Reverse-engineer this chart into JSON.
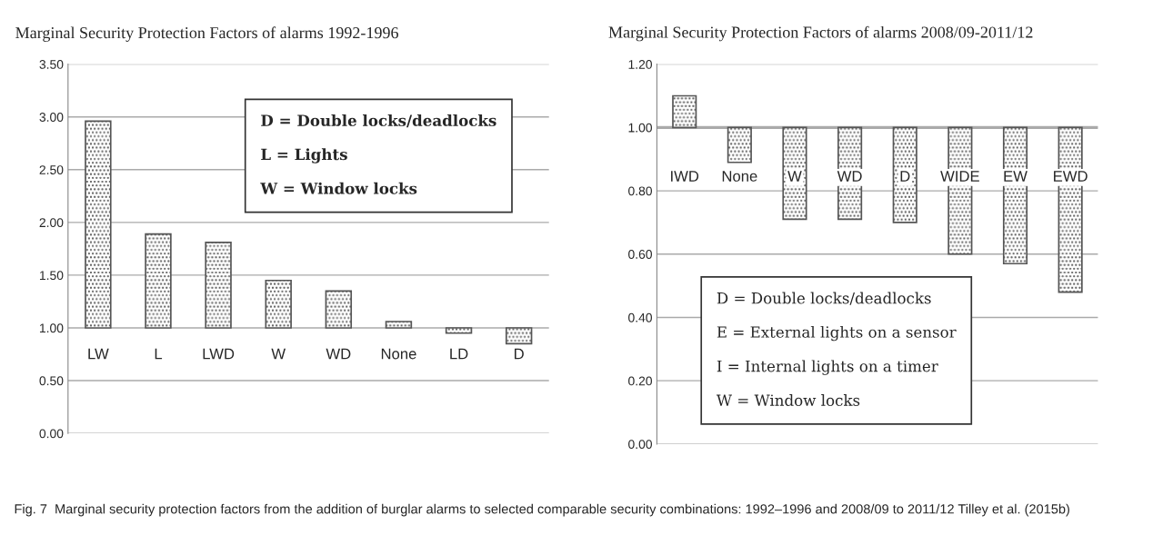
{
  "chart_data": [
    {
      "type": "bar",
      "title": "Marginal Security Protection Factors of alarms 1992-1996",
      "categories": [
        "LW",
        "L",
        "LWD",
        "W",
        "WD",
        "None",
        "LD",
        "D"
      ],
      "base": [
        1,
        1,
        1,
        1,
        1,
        1,
        1,
        1
      ],
      "values": [
        1.96,
        0.89,
        0.81,
        0.45,
        0.35,
        0.06,
        -0.05,
        -0.15
      ],
      "color": "#555555",
      "ylim": [
        0,
        3.5
      ],
      "yticks": [
        {
          "value": 0,
          "label": "0.00"
        },
        {
          "value": 0.5,
          "label": "0.50"
        },
        {
          "value": 1,
          "label": "1.00"
        },
        {
          "value": 1.5,
          "label": "1.50"
        },
        {
          "value": 2,
          "label": "2.00"
        },
        {
          "value": 2.5,
          "label": "2.50"
        },
        {
          "value": 3,
          "label": "3.00"
        },
        {
          "value": 3.5,
          "label": "3.50"
        }
      ],
      "grid": "y",
      "legend": false,
      "annotations": [
        "D = Double locks/deadlocks",
        "L = Lights",
        "W = Window locks"
      ]
    },
    {
      "type": "bar",
      "title": "Marginal Security Protection Factors of alarms 2008/09-2011/12",
      "categories": [
        "IWD",
        "None",
        "W",
        "WD",
        "D",
        "WIDE",
        "EW",
        "EWD"
      ],
      "base": [
        1,
        1,
        1,
        1,
        1,
        1,
        1,
        1
      ],
      "values": [
        0.1,
        -0.11,
        -0.29,
        -0.29,
        -0.3,
        -0.4,
        -0.43,
        -0.52
      ],
      "color": "#555555",
      "ref_lines": [
        {
          "axis": "y",
          "value": 1,
          "color": "#aaaaaa"
        }
      ],
      "ylim": [
        0,
        1.2
      ],
      "yticks": [
        {
          "value": 0,
          "label": "0.00"
        },
        {
          "value": 0.2,
          "label": "0.20"
        },
        {
          "value": 0.4,
          "label": "0.40"
        },
        {
          "value": 0.6,
          "label": "0.60"
        },
        {
          "value": 0.8,
          "label": "0.80"
        },
        {
          "value": 1,
          "label": "1.00"
        },
        {
          "value": 1.2,
          "label": "1.20"
        }
      ],
      "grid": "y",
      "legend": false,
      "annotations": [
        "D = Double locks/deadlocks",
        "E = External lights on a sensor",
        "I = Internal lights on a timer",
        "W = Window locks",
        "Fig. 7  Marginal security protection factors from the addition of burglar alarms to selected comparable security combinations: 1992–1996 and 2008/09 to 2011/12 Tilley et al. (2015b)"
      ]
    }
  ]
}
